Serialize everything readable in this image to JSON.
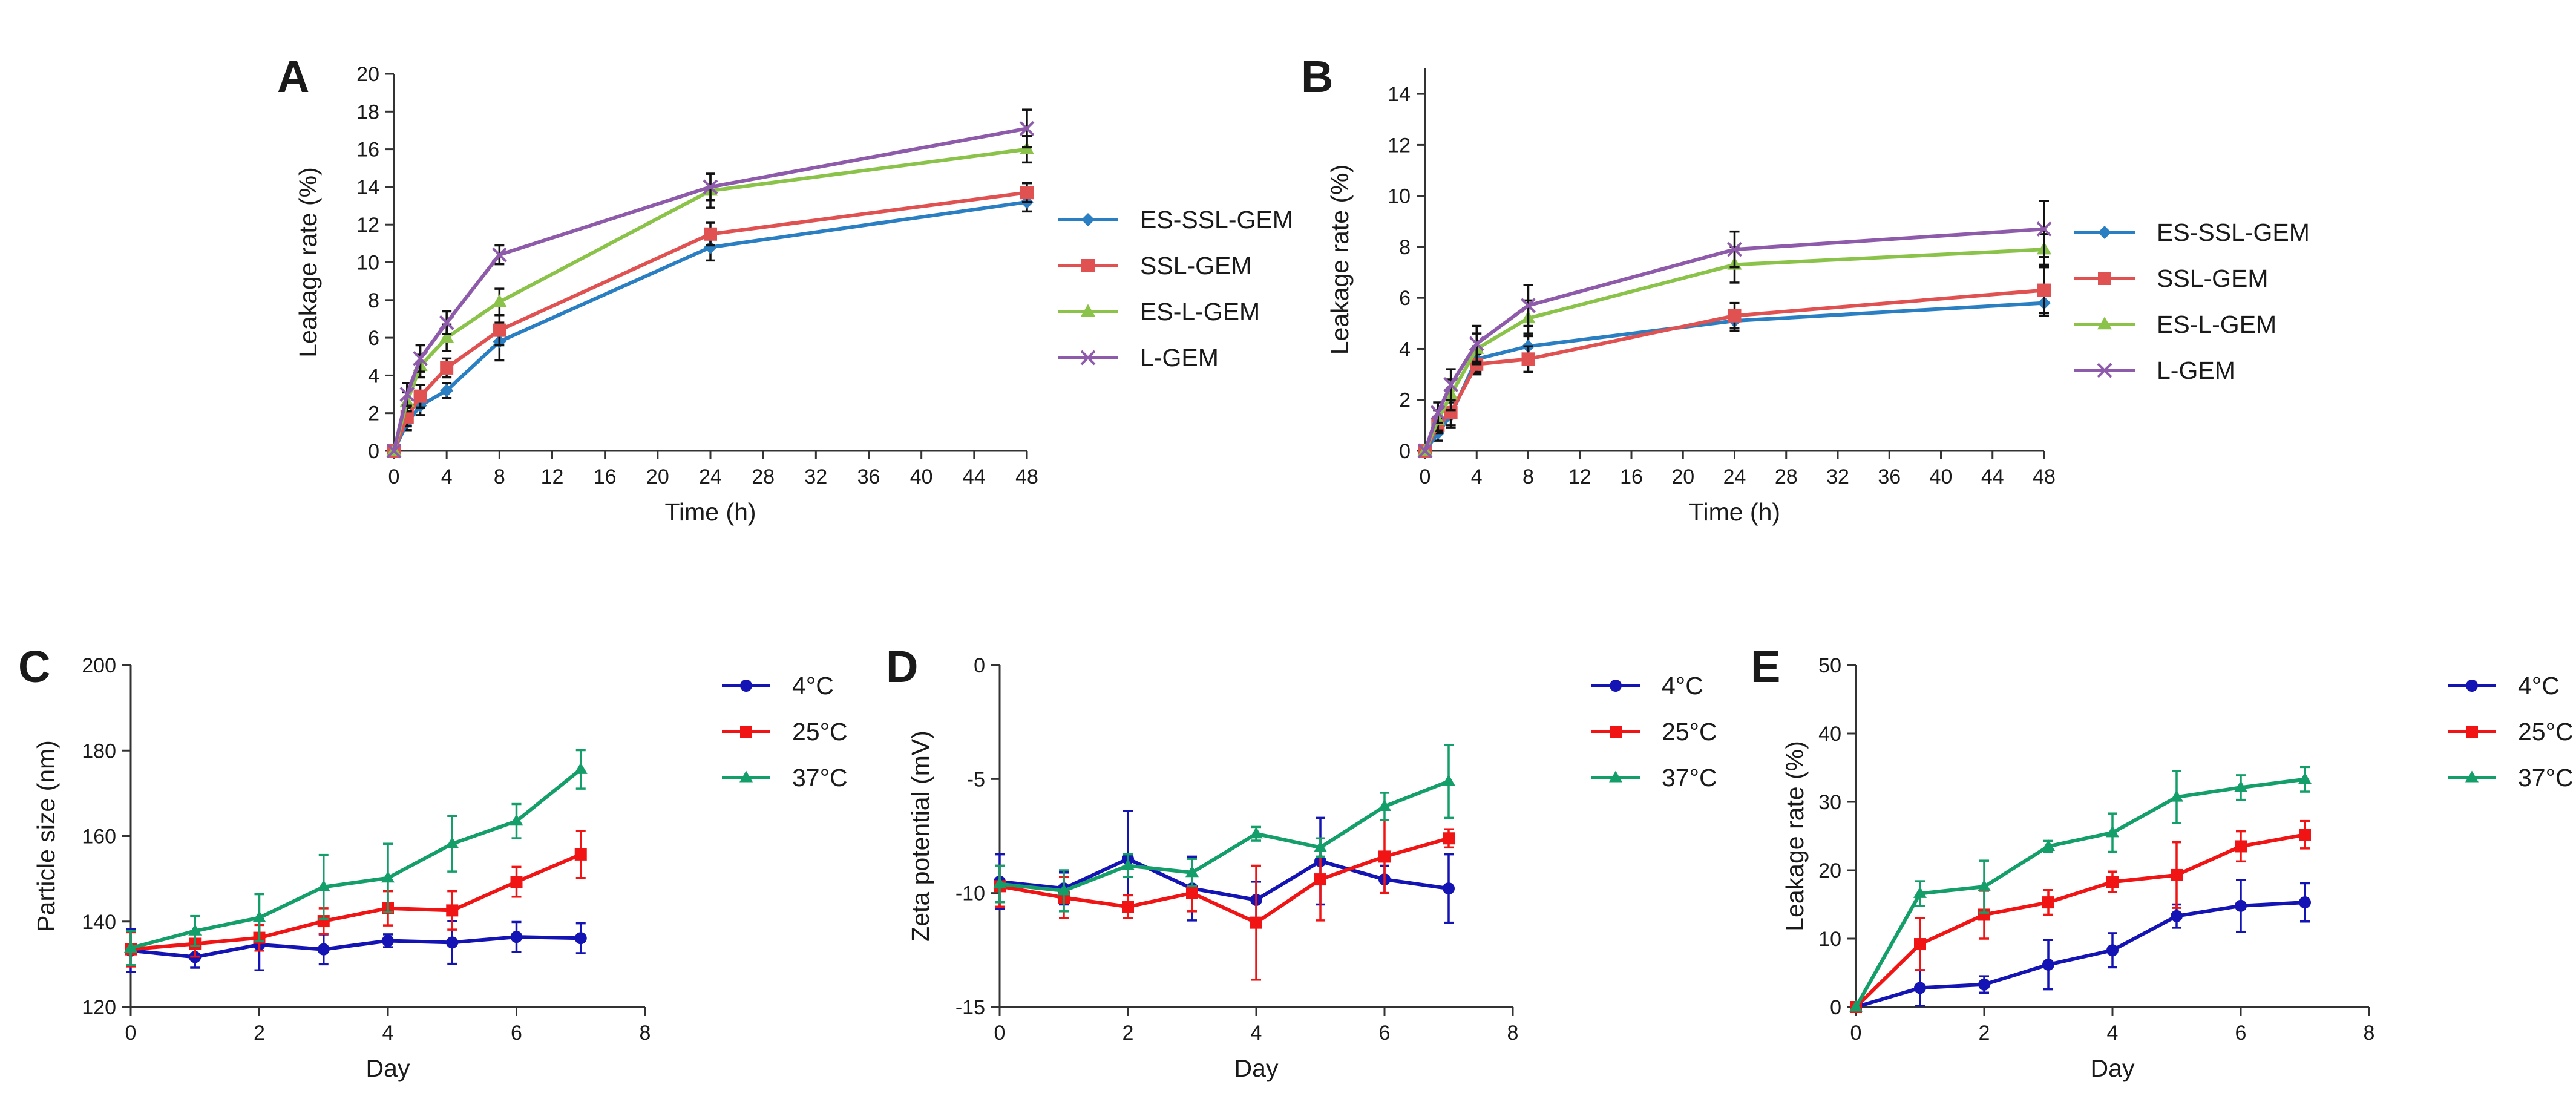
{
  "figure": {
    "colors": {
      "es_ssl": "#2a7ec2",
      "ssl": "#e05252",
      "es_l": "#8bc34a",
      "l": "#8e5bab",
      "c4": "#1414b4",
      "c25": "#f01414",
      "c37": "#149e6a",
      "errorbar_ab": "#111111"
    }
  },
  "chart_data": [
    {
      "panel": "A",
      "type": "line",
      "xlabel": "Time (h)",
      "ylabel": "Leakage rate (%)",
      "xlim": [
        0,
        48
      ],
      "ylim": [
        0,
        20
      ],
      "xticks": [
        0,
        4,
        8,
        12,
        16,
        20,
        24,
        28,
        32,
        36,
        40,
        44,
        48
      ],
      "yticks": [
        0,
        2,
        4,
        6,
        8,
        10,
        12,
        14,
        16,
        18,
        20
      ],
      "legend_position": "right",
      "errorbar_color": "errorbar_ab",
      "series": [
        {
          "name": "ES-SSL-GEM",
          "color_key": "es_ssl",
          "marker": "diamond",
          "x": [
            0,
            1,
            2,
            4,
            8,
            24,
            48
          ],
          "y": [
            0,
            1.5,
            2.4,
            3.2,
            5.8,
            10.8,
            13.2
          ],
          "err": [
            0,
            0.4,
            0.5,
            0.4,
            1.0,
            0.7,
            0.5
          ]
        },
        {
          "name": "SSL-GEM",
          "color_key": "ssl",
          "marker": "square",
          "x": [
            0,
            1,
            2,
            4,
            8,
            24,
            48
          ],
          "y": [
            0,
            1.8,
            2.9,
            4.4,
            6.4,
            11.5,
            13.7
          ],
          "err": [
            0,
            0.5,
            0.6,
            0.5,
            0.8,
            0.6,
            0.5
          ]
        },
        {
          "name": "ES-L-GEM",
          "color_key": "es_l",
          "marker": "triangle",
          "x": [
            0,
            1,
            2,
            4,
            8,
            24,
            48
          ],
          "y": [
            0,
            2.6,
            4.5,
            6.0,
            7.9,
            13.8,
            16.0
          ],
          "err": [
            0,
            0.5,
            0.6,
            0.7,
            0.7,
            0.9,
            0.7
          ]
        },
        {
          "name": "L-GEM",
          "color_key": "l",
          "marker": "x",
          "x": [
            0,
            1,
            2,
            4,
            8,
            24,
            48
          ],
          "y": [
            0,
            3.0,
            4.9,
            6.8,
            10.4,
            14.0,
            17.1
          ],
          "err": [
            0,
            0.6,
            0.7,
            0.6,
            0.5,
            0.7,
            1.0
          ]
        }
      ]
    },
    {
      "panel": "B",
      "type": "line",
      "xlabel": "Time (h)",
      "ylabel": "Leakage rate (%)",
      "xlim": [
        0,
        48
      ],
      "ylim": [
        0,
        15
      ],
      "xticks": [
        0,
        4,
        8,
        12,
        16,
        20,
        24,
        28,
        32,
        36,
        40,
        44,
        48
      ],
      "yticks": [
        0,
        2,
        4,
        6,
        8,
        10,
        12,
        14
      ],
      "legend_position": "right",
      "errorbar_color": "errorbar_ab",
      "series": [
        {
          "name": "ES-SSL-GEM",
          "color_key": "es_ssl",
          "marker": "diamond",
          "x": [
            0,
            1,
            2,
            4,
            8,
            24,
            48
          ],
          "y": [
            0,
            0.7,
            1.4,
            3.6,
            4.1,
            5.1,
            5.8
          ],
          "err": [
            0,
            0.3,
            0.5,
            0.5,
            0.5,
            0.4,
            0.5
          ]
        },
        {
          "name": "SSL-GEM",
          "color_key": "ssl",
          "marker": "square",
          "x": [
            0,
            1,
            2,
            4,
            8,
            24,
            48
          ],
          "y": [
            0,
            1.0,
            1.5,
            3.4,
            3.6,
            5.3,
            6.3
          ],
          "err": [
            0,
            0.3,
            0.5,
            0.4,
            0.5,
            0.5,
            0.9
          ]
        },
        {
          "name": "ES-L-GEM",
          "color_key": "es_l",
          "marker": "triangle",
          "x": [
            0,
            1,
            2,
            4,
            8,
            24,
            48
          ],
          "y": [
            0,
            1.2,
            2.2,
            4.0,
            5.2,
            7.3,
            7.9
          ],
          "err": [
            0,
            0.4,
            0.6,
            0.6,
            0.7,
            0.7,
            0.6
          ]
        },
        {
          "name": "L-GEM",
          "color_key": "l",
          "marker": "x",
          "x": [
            0,
            1,
            2,
            4,
            8,
            24,
            48
          ],
          "y": [
            0,
            1.5,
            2.6,
            4.2,
            5.7,
            7.9,
            8.7
          ],
          "err": [
            0,
            0.4,
            0.6,
            0.7,
            0.8,
            0.7,
            1.1
          ]
        }
      ]
    },
    {
      "panel": "C",
      "type": "line",
      "xlabel": "Day",
      "ylabel": "Particle size (nm)",
      "xlim": [
        0,
        8
      ],
      "ylim": [
        120,
        200
      ],
      "xticks": [
        0,
        2,
        4,
        6,
        8
      ],
      "yticks": [
        120,
        140,
        160,
        180,
        200
      ],
      "legend_position": "right",
      "series": [
        {
          "name": "4°C",
          "color_key": "c4",
          "marker": "circle",
          "x": [
            0,
            1,
            2,
            3,
            4,
            5,
            6,
            7
          ],
          "y": [
            133.2,
            131.7,
            134.6,
            133.5,
            135.5,
            135.1,
            136.4,
            136.1
          ],
          "err": [
            5,
            2.5,
            6,
            3.5,
            1.5,
            5,
            3.5,
            3.5
          ]
        },
        {
          "name": "25°C",
          "color_key": "c25",
          "marker": "square",
          "x": [
            0,
            1,
            2,
            3,
            4,
            5,
            6,
            7
          ],
          "y": [
            133.5,
            134.8,
            136.2,
            140.1,
            143.1,
            142.6,
            149.3,
            155.7
          ],
          "err": [
            4,
            3,
            3,
            3,
            4,
            4.5,
            3.5,
            5.5
          ]
        },
        {
          "name": "37°C",
          "color_key": "c37",
          "marker": "triangle",
          "x": [
            0,
            1,
            2,
            3,
            4,
            5,
            6,
            7
          ],
          "y": [
            133.8,
            137.8,
            140.9,
            148.1,
            150.2,
            158.2,
            163.5,
            175.6
          ],
          "err": [
            4,
            3.5,
            5.5,
            7.5,
            8,
            6.5,
            4,
            4.5
          ]
        }
      ]
    },
    {
      "panel": "D",
      "type": "line",
      "xlabel": "Day",
      "ylabel": "Zeta potential (mV)",
      "xlim": [
        0,
        8
      ],
      "ylim": [
        -15,
        0
      ],
      "xticks": [
        0,
        2,
        4,
        6,
        8
      ],
      "yticks": [
        -15,
        -10,
        -5,
        0
      ],
      "legend_position": "right",
      "series": [
        {
          "name": "4°C",
          "color_key": "c4",
          "marker": "circle",
          "x": [
            0,
            1,
            2,
            3,
            4,
            5,
            6,
            7
          ],
          "y": [
            -9.5,
            -9.8,
            -8.5,
            -9.8,
            -10.3,
            -8.6,
            -9.4,
            -9.8
          ],
          "err": [
            1.2,
            0.7,
            2.1,
            1.4,
            0.8,
            1.9,
            0.6,
            1.5
          ]
        },
        {
          "name": "25°C",
          "color_key": "c25",
          "marker": "square",
          "x": [
            0,
            1,
            2,
            3,
            4,
            5,
            6,
            7
          ],
          "y": [
            -9.7,
            -10.2,
            -10.6,
            -10.0,
            -11.3,
            -9.4,
            -8.4,
            -7.6
          ],
          "err": [
            0.9,
            0.9,
            0.5,
            0.8,
            2.5,
            1.8,
            1.6,
            0.4
          ]
        },
        {
          "name": "37°C",
          "color_key": "c37",
          "marker": "triangle",
          "x": [
            0,
            1,
            2,
            3,
            4,
            5,
            6,
            7
          ],
          "y": [
            -9.6,
            -9.9,
            -8.8,
            -9.1,
            -7.4,
            -8.0,
            -6.2,
            -5.1
          ],
          "err": [
            0.8,
            0.9,
            0.5,
            0.6,
            0.3,
            0.4,
            0.6,
            1.6
          ]
        }
      ]
    },
    {
      "panel": "E",
      "type": "line",
      "xlabel": "Day",
      "ylabel": "Leakage rate (%)",
      "xlim": [
        0,
        8
      ],
      "ylim": [
        0,
        50
      ],
      "xticks": [
        0,
        2,
        4,
        6,
        8
      ],
      "yticks": [
        0,
        10,
        20,
        30,
        40,
        50
      ],
      "legend_position": "right",
      "series": [
        {
          "name": "4°C",
          "color_key": "c4",
          "marker": "circle",
          "x": [
            0,
            1,
            2,
            3,
            4,
            5,
            6,
            7
          ],
          "y": [
            0,
            2.8,
            3.3,
            6.2,
            8.3,
            13.3,
            14.8,
            15.3
          ],
          "err": [
            0,
            2.6,
            1.2,
            3.6,
            2.5,
            1.7,
            3.8,
            2.8
          ]
        },
        {
          "name": "25°C",
          "color_key": "c25",
          "marker": "square",
          "x": [
            0,
            1,
            2,
            3,
            4,
            5,
            6,
            7
          ],
          "y": [
            0,
            9.2,
            13.5,
            15.3,
            18.3,
            19.3,
            23.5,
            25.2
          ],
          "err": [
            0,
            3.8,
            3.5,
            1.8,
            1.5,
            4.8,
            2.2,
            2.0
          ]
        },
        {
          "name": "37°C",
          "color_key": "c37",
          "marker": "triangle",
          "x": [
            0,
            1,
            2,
            3,
            4,
            5,
            6,
            7
          ],
          "y": [
            0,
            16.6,
            17.6,
            23.5,
            25.5,
            30.7,
            32.1,
            33.3
          ],
          "err": [
            0,
            1.8,
            3.8,
            0.8,
            2.8,
            3.8,
            1.8,
            1.8
          ]
        }
      ]
    }
  ]
}
